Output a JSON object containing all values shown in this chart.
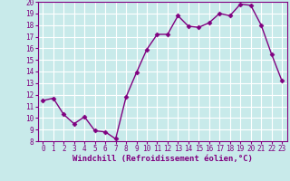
{
  "x": [
    0,
    1,
    2,
    3,
    4,
    5,
    6,
    7,
    8,
    9,
    10,
    11,
    12,
    13,
    14,
    15,
    16,
    17,
    18,
    19,
    20,
    21,
    22,
    23
  ],
  "y": [
    11.5,
    11.7,
    10.3,
    9.5,
    10.1,
    8.9,
    8.8,
    8.2,
    11.8,
    13.9,
    15.9,
    17.2,
    17.2,
    18.8,
    17.9,
    17.8,
    18.2,
    19.0,
    18.8,
    19.8,
    19.7,
    18.0,
    15.5,
    13.2
  ],
  "line_color": "#800080",
  "marker": "D",
  "markersize": 2.5,
  "linewidth": 1.0,
  "background_color": "#c8eaea",
  "grid_color": "#ffffff",
  "xlabel": "Windchill (Refroidissement éolien,°C)",
  "xlabel_fontsize": 6.5,
  "xlim": [
    -0.5,
    23.5
  ],
  "ylim": [
    8,
    20
  ],
  "yticks": [
    8,
    9,
    10,
    11,
    12,
    13,
    14,
    15,
    16,
    17,
    18,
    19,
    20
  ],
  "xticks": [
    0,
    1,
    2,
    3,
    4,
    5,
    6,
    7,
    8,
    9,
    10,
    11,
    12,
    13,
    14,
    15,
    16,
    17,
    18,
    19,
    20,
    21,
    22,
    23
  ],
  "tick_fontsize": 5.5,
  "tick_color": "#800080",
  "xlabel_color": "#800080",
  "spine_color": "#800080"
}
